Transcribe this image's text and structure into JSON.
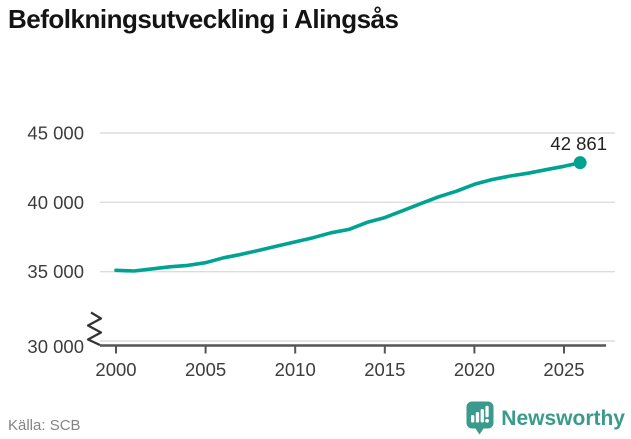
{
  "header": {
    "title": "Befolkningsutveckling i Alingsås"
  },
  "chart_data": {
    "type": "line",
    "title": "Befolkningsutveckling i Alingsås",
    "series": [
      {
        "x": [
          2000,
          2001,
          2002,
          2003,
          2004,
          2005,
          2006,
          2007,
          2008,
          2009,
          2010,
          2011,
          2012,
          2013,
          2014,
          2015,
          2016,
          2017,
          2018,
          2019,
          2020,
          2021,
          2022,
          2023,
          2024,
          2025,
          2025.9
        ],
        "values": [
          35100,
          35050,
          35200,
          35350,
          35450,
          35650,
          36000,
          36250,
          36550,
          36850,
          37150,
          37450,
          37800,
          38050,
          38550,
          38900,
          39400,
          39900,
          40400,
          40800,
          41300,
          41650,
          41900,
          42100,
          42350,
          42600,
          42861
        ]
      }
    ],
    "end_point_label": "42 861",
    "x_ticks": {
      "values": [
        2000,
        2005,
        2010,
        2015,
        2020,
        2025
      ],
      "labels": [
        "2000",
        "2005",
        "2010",
        "2015",
        "2020",
        "2025"
      ]
    },
    "y_ticks": {
      "values": [
        30000,
        35000,
        40000,
        45000
      ],
      "labels": [
        "30 000",
        "35 000",
        "40 000",
        "45 000"
      ]
    },
    "ylim": [
      30000,
      45000
    ],
    "xlim": [
      2000,
      2026
    ],
    "axis_break": true,
    "grid": "horizontal",
    "legend": "none",
    "line_color": "#00a392",
    "grid_color": "#dcdcdc",
    "axis_color": "#555555",
    "tick_label_color": "#3d3d3d",
    "end_label_color": "#222222"
  },
  "footer": {
    "source": "Källa: SCB",
    "brand": "Newsworthy",
    "brand_color": "#3a9a8c"
  }
}
